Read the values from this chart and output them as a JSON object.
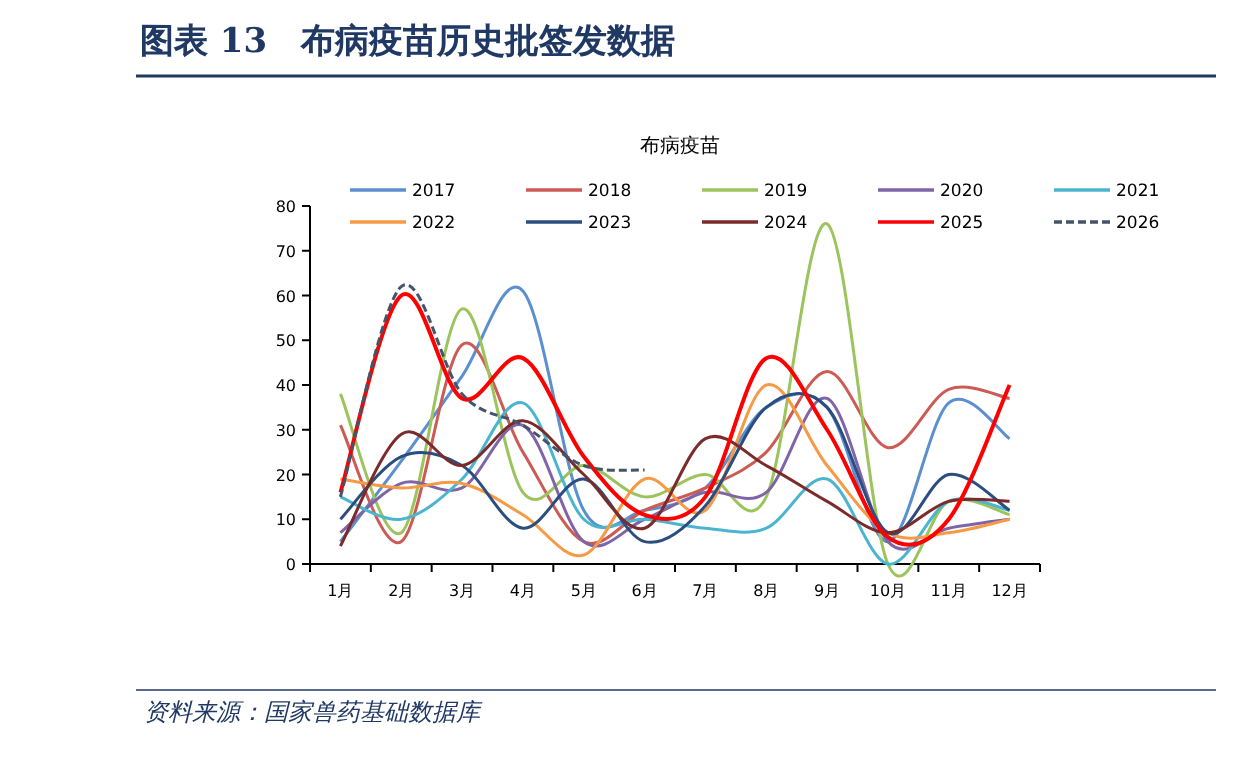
{
  "chart_data": {
    "type": "line",
    "title": "图表 13　布病疫苗历史批签发数据",
    "subtitle": "布病疫苗",
    "annotations": [
      "资料来源：国家兽药基础数据库"
    ],
    "categories": [
      "1月",
      "2月",
      "3月",
      "4月",
      "5月",
      "6月",
      "7月",
      "8月",
      "9月",
      "10月",
      "11月",
      "12月"
    ],
    "ylim": [
      0,
      80
    ],
    "yticks": [
      0,
      10,
      20,
      30,
      40,
      50,
      60,
      70,
      80
    ],
    "legend": "top",
    "grid": false,
    "series": [
      {
        "name": "2017",
        "color": "#5b8fd0",
        "values": [
          5,
          23,
          42,
          61,
          12,
          12,
          17,
          35,
          35,
          5,
          36,
          28
        ]
      },
      {
        "name": "2018",
        "color": "#cd5b55",
        "values": [
          31,
          5,
          49,
          25,
          5,
          12,
          17,
          25,
          43,
          26,
          39,
          37
        ]
      },
      {
        "name": "2019",
        "color": "#9bc45c",
        "values": [
          38,
          7,
          57,
          16,
          22,
          15,
          20,
          15,
          76,
          0,
          14,
          11
        ]
      },
      {
        "name": "2020",
        "color": "#8064a8",
        "values": [
          7,
          18,
          17,
          31,
          5,
          10,
          16,
          16,
          37,
          5,
          8,
          10
        ]
      },
      {
        "name": "2021",
        "color": "#4bb5cf",
        "values": [
          15,
          10,
          19,
          36,
          10,
          10,
          8,
          8,
          19,
          0,
          14,
          12
        ]
      },
      {
        "name": "2022",
        "color": "#f79a46",
        "values": [
          19,
          17,
          18,
          11,
          2,
          19,
          12,
          40,
          22,
          7,
          7,
          10
        ]
      },
      {
        "name": "2023",
        "color": "#2c4e7e",
        "values": [
          10,
          24,
          22,
          8,
          19,
          5,
          13,
          35,
          35,
          7,
          20,
          12
        ]
      },
      {
        "name": "2024",
        "color": "#7b2c2a",
        "values": [
          4,
          29,
          22,
          32,
          20,
          8,
          28,
          22,
          14,
          7,
          14,
          14
        ]
      },
      {
        "name": "2025",
        "color": "#ff0000",
        "values": [
          16,
          60,
          37,
          46,
          24,
          11,
          15,
          46,
          30,
          6,
          10,
          40
        ]
      },
      {
        "name": "2026",
        "color": "#44546a",
        "line_style": "dashed",
        "values": [
          15,
          62,
          38,
          31,
          22,
          21,
          null,
          null,
          null,
          null,
          null,
          null
        ]
      }
    ]
  }
}
